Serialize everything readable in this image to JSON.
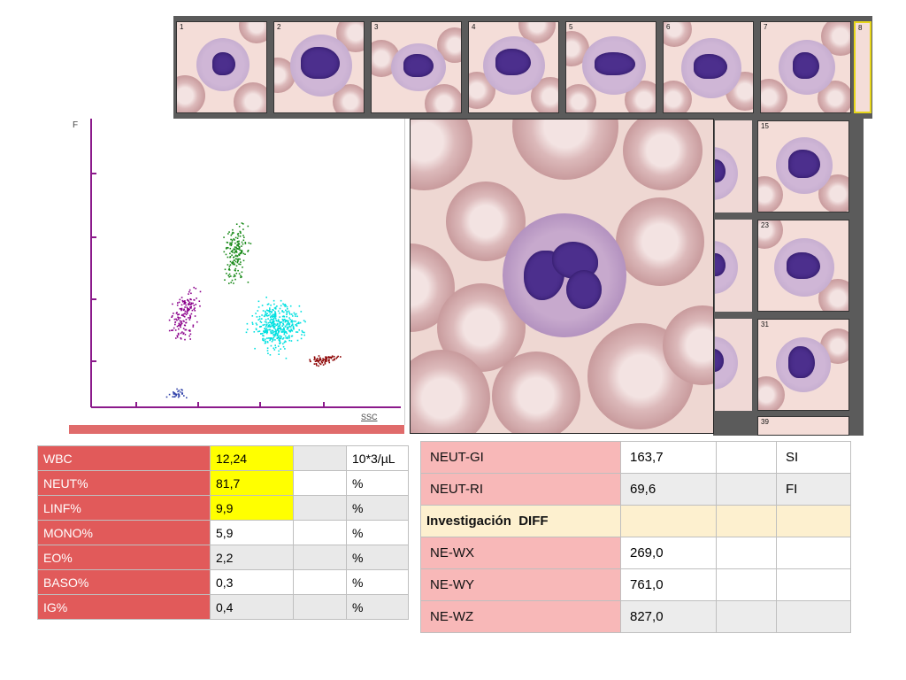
{
  "thumbnails": [
    {
      "number": "1"
    },
    {
      "number": "2"
    },
    {
      "number": "3"
    },
    {
      "number": "4"
    },
    {
      "number": "5"
    },
    {
      "number": "6"
    },
    {
      "number": "7"
    },
    {
      "number": "8"
    }
  ],
  "right_thumbnails": [
    {
      "number": "15"
    },
    {
      "number": "23"
    },
    {
      "number": "31"
    },
    {
      "number": "39"
    }
  ],
  "scattergram": {
    "x_axis_label": "SSC",
    "y_axis_label": "F",
    "clusters": [
      {
        "name": "neutrophils",
        "color": "#00e0e0"
      },
      {
        "name": "lymphocytes",
        "color": "#8b008b"
      },
      {
        "name": "monocytes",
        "color": "#1a8a1a"
      },
      {
        "name": "eosinophils",
        "color": "#8b0000"
      },
      {
        "name": "debris",
        "color": "#3344aa"
      }
    ]
  },
  "left_table": [
    {
      "param": "WBC",
      "value": "12,24",
      "flag": "",
      "unit": "10*3/µL",
      "highlight": true
    },
    {
      "param": "NEUT%",
      "value": "81,7",
      "flag": "",
      "unit": "%",
      "highlight": true
    },
    {
      "param": "LINF%",
      "value": "9,9",
      "flag": "",
      "unit": "%",
      "highlight": true
    },
    {
      "param": "MONO%",
      "value": "5,9",
      "flag": "",
      "unit": "%",
      "highlight": false
    },
    {
      "param": "EO%",
      "value": "2,2",
      "flag": "",
      "unit": "%",
      "highlight": false
    },
    {
      "param": "BASO%",
      "value": "0,3",
      "flag": "",
      "unit": "%",
      "highlight": false
    },
    {
      "param": "IG%",
      "value": "0,4",
      "flag": "",
      "unit": "%",
      "highlight": false
    }
  ],
  "right_table": {
    "rows_top": [
      {
        "param": "NEUT-GI",
        "value": "163,7",
        "flag": "",
        "unit": "SI"
      },
      {
        "param": "NEUT-RI",
        "value": "69,6",
        "flag": "",
        "unit": "FI"
      }
    ],
    "section_title": "Investigación  DIFF",
    "rows_bottom": [
      {
        "param": "NE-WX",
        "value": "269,0",
        "flag": "",
        "unit": ""
      },
      {
        "param": "NE-WY",
        "value": "761,0",
        "flag": "",
        "unit": ""
      },
      {
        "param": "NE-WZ",
        "value": "827,0",
        "flag": "",
        "unit": ""
      }
    ]
  },
  "colors": {
    "param_cell": "#e15a5a",
    "highlight": "#ffff00",
    "right_param_cell": "#f8b8b8",
    "section_row": "#fdf0cf"
  }
}
